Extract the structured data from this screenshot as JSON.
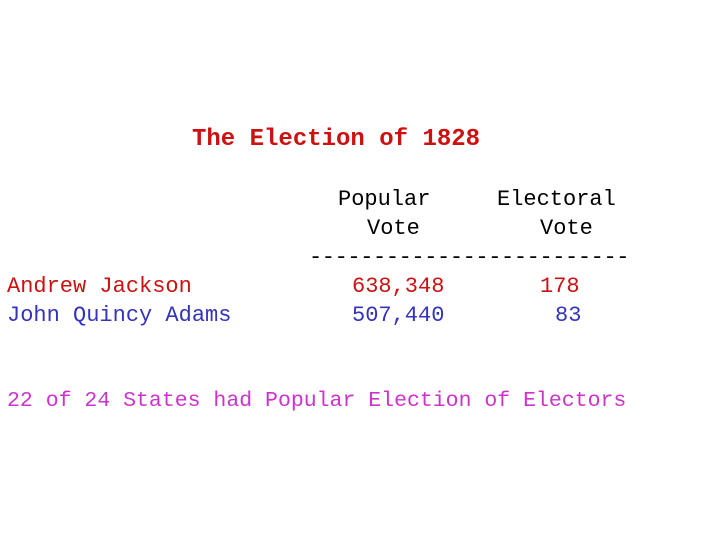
{
  "title": "The Election of 1828",
  "headers": {
    "popular_line1": "Popular",
    "popular_line2": "Vote",
    "electoral_line1": "Electoral",
    "electoral_line2": "Vote"
  },
  "rule": "-------------------------",
  "rows": [
    {
      "name": "Andrew Jackson",
      "popular": "638,348",
      "electoral": "178"
    },
    {
      "name": "John Quincy Adams",
      "popular": "507,440",
      "electoral": "83"
    }
  ],
  "note": "22 of 24 States had Popular Election of Electors",
  "colors": {
    "title": "#cc1111",
    "jackson": "#cc1111",
    "adams": "#3333bb",
    "note": "#cc33cc"
  }
}
